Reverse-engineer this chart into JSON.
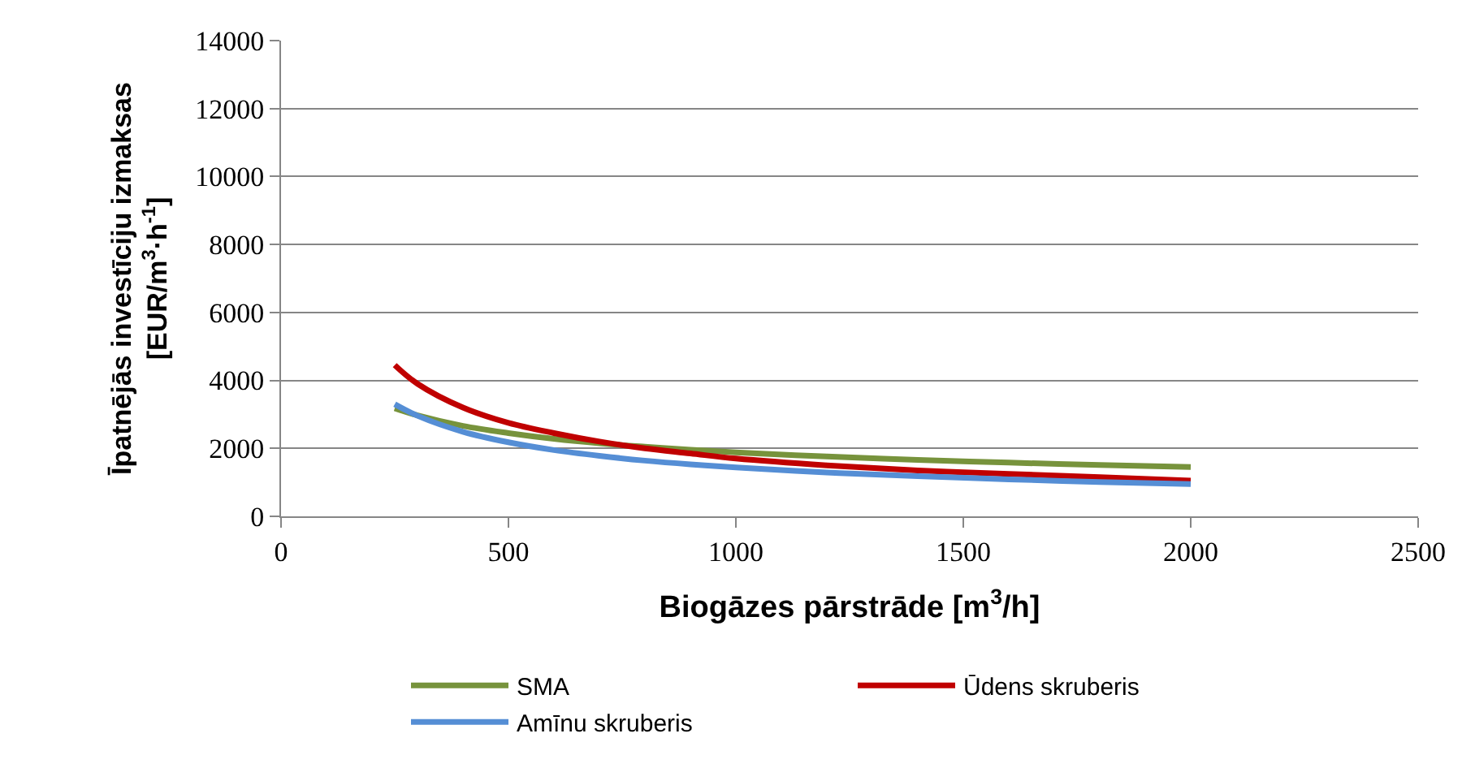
{
  "chart_data": {
    "type": "line",
    "xlabel": "Biogāzes pārstrāde [m$^{3}$/h]",
    "ylabel": "Īpatnējās investīciju izmaksas\n[EUR/m$^{3}$·h$^{-1}$]",
    "x": [
      250,
      300,
      400,
      500,
      600,
      700,
      800,
      900,
      1000,
      1200,
      1400,
      1600,
      1800,
      2000
    ],
    "series": [
      {
        "name": "SMA",
        "color": "#77933c",
        "values": [
          3180,
          2970,
          2660,
          2450,
          2280,
          2150,
          2050,
          1960,
          1880,
          1760,
          1660,
          1580,
          1510,
          1450
        ]
      },
      {
        "name": "Ūdens skruberis",
        "color": "#c00000",
        "values": [
          4450,
          3900,
          3200,
          2750,
          2450,
          2200,
          2000,
          1850,
          1700,
          1500,
          1350,
          1250,
          1150,
          1050
        ]
      },
      {
        "name": "Amīnu skruberis",
        "color": "#558ed5",
        "values": [
          3300,
          2960,
          2490,
          2180,
          1950,
          1780,
          1640,
          1530,
          1440,
          1290,
          1180,
          1090,
          1010,
          950
        ]
      }
    ],
    "xlim": [
      0,
      2500
    ],
    "xticks": [
      0,
      500,
      1000,
      1500,
      2000,
      2500
    ],
    "ylim": [
      0,
      14000
    ],
    "yticks": [
      0,
      2000,
      4000,
      6000,
      8000,
      10000,
      12000,
      14000
    ],
    "grid": "y",
    "legend": "bottom",
    "marker": "none",
    "line_style": "solid"
  }
}
